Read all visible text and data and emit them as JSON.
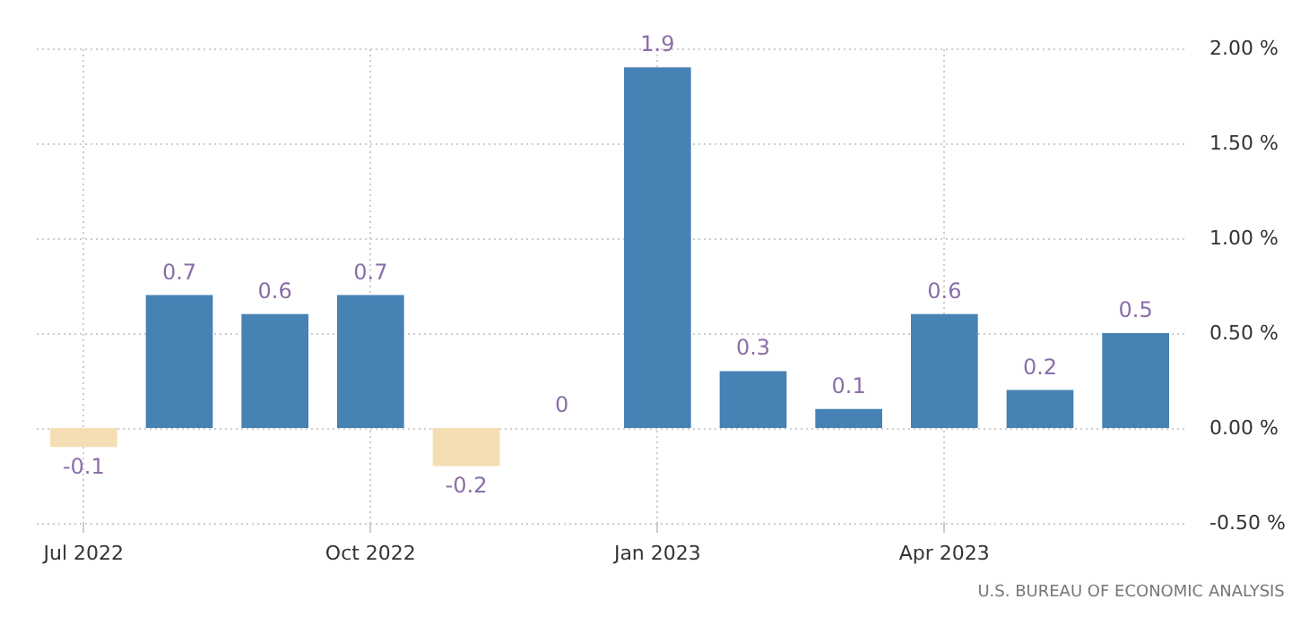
{
  "chart_data": {
    "type": "bar",
    "categories": [
      "Jul 2022",
      null,
      null,
      "Oct 2022",
      null,
      null,
      "Jan 2023",
      null,
      null,
      "Apr 2023",
      null,
      null
    ],
    "values": [
      -0.1,
      0.7,
      0.6,
      0.7,
      -0.2,
      0,
      1.9,
      0.3,
      0.1,
      0.6,
      0.2,
      0.5
    ],
    "colors": [
      "#f5deb3",
      "#4682b4",
      "#4682b4",
      "#4682b4",
      "#f5deb3",
      "#4682b4",
      "#4682b4",
      "#4682b4",
      "#4682b4",
      "#4682b4",
      "#4682b4",
      "#4682b4"
    ],
    "ylim": [
      -0.5,
      2.0
    ],
    "yticks": [
      {
        "value": -0.5,
        "label": "-0.50 %"
      },
      {
        "value": 0,
        "label": "0.00 %"
      },
      {
        "value": 0.5,
        "label": "0.50 %"
      },
      {
        "value": 1,
        "label": "1.00 %"
      },
      {
        "value": 1.5,
        "label": "1.50 %"
      },
      {
        "value": 2,
        "label": "2.00 %"
      }
    ],
    "grid": true,
    "data_labels": true,
    "annotations": [
      "U.S. BUREAU OF ECONOMIC ANALYSIS"
    ]
  }
}
